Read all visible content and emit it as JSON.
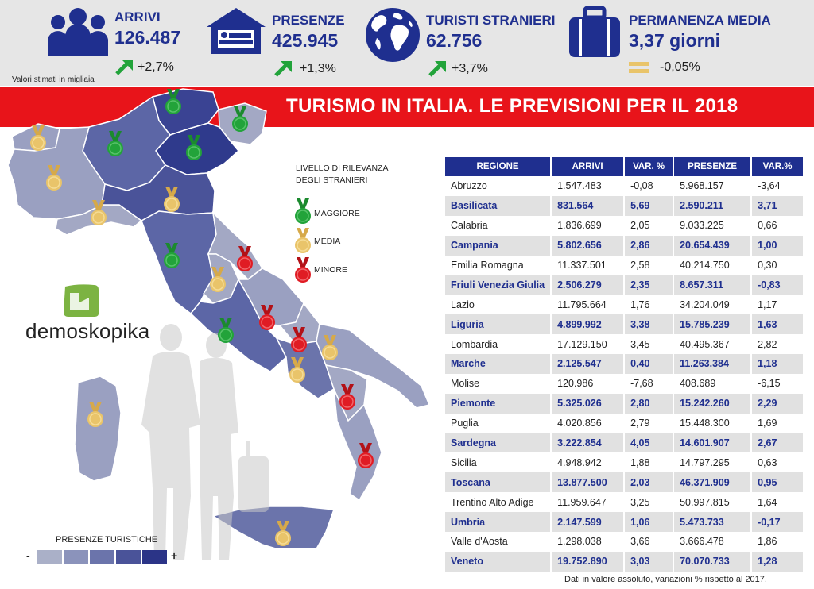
{
  "header": {
    "kpis": [
      {
        "label": "ARRIVI",
        "value": "126.487",
        "change": "+2,7%",
        "trend": "up",
        "icon": "people-icon"
      },
      {
        "label": "PRESENZE",
        "value": "425.945",
        "change": "+1,3%",
        "trend": "up",
        "icon": "hotel-bed-icon"
      },
      {
        "label": "TURISTI STRANIERI",
        "value": "62.756",
        "change": "+3,7%",
        "trend": "up",
        "icon": "globe-icon"
      },
      {
        "label": "PERMANENZA MEDIA",
        "value": "3,37 giorni",
        "change": "-0,05%",
        "trend": "flat",
        "icon": "suitcase-icon"
      }
    ],
    "note": "Valori stimati in migliaia"
  },
  "title": "TURISMO IN ITALIA. LE PREVISIONI PER IL 2018",
  "legend": {
    "title_line1": "LIVELLO DI RILEVANZA",
    "title_line2": "DEGLI STRANIERI",
    "items": [
      {
        "label": "MAGGIORE",
        "color": "#22a33a"
      },
      {
        "label": "MEDIA",
        "color": "#e9c46a"
      },
      {
        "label": "MINORE",
        "color": "#e01c24"
      }
    ]
  },
  "logo": {
    "text": "demoskopika"
  },
  "scale": {
    "title": "PRESENZE TURISTICHE",
    "minus": "-",
    "plus": "+",
    "colors": [
      "#aab0c8",
      "#8b93bb",
      "#6b74ab",
      "#4a5399",
      "#2b3487"
    ]
  },
  "chart_data": {
    "type": "table",
    "columns": [
      "REGIONE",
      "ARRIVI",
      "VAR. %",
      "PRESENZE",
      "VAR.%"
    ],
    "rows": [
      [
        "Abruzzo",
        "1.547.483",
        "-0,08",
        "5.968.157",
        "-3,64"
      ],
      [
        "Basilicata",
        "831.564",
        "5,69",
        "2.590.211",
        "3,71"
      ],
      [
        "Calabria",
        "1.836.699",
        "2,05",
        "9.033.225",
        "0,66"
      ],
      [
        "Campania",
        "5.802.656",
        "2,86",
        "20.654.439",
        "1,00"
      ],
      [
        "Emilia Romagna",
        "11.337.501",
        "2,58",
        "40.214.750",
        "0,30"
      ],
      [
        "Friuli Venezia Giulia",
        "2.506.279",
        "2,35",
        "8.657.311",
        "-0,83"
      ],
      [
        "Lazio",
        "11.795.664",
        "1,76",
        "34.204.049",
        "1,17"
      ],
      [
        "Liguria",
        "4.899.992",
        "3,38",
        "15.785.239",
        "1,63"
      ],
      [
        "Lombardia",
        "17.129.150",
        "3,45",
        "40.495.367",
        "2,82"
      ],
      [
        "Marche",
        "2.125.547",
        "0,40",
        "11.263.384",
        "1,18"
      ],
      [
        "Molise",
        "120.986",
        "-7,68",
        "408.689",
        "-6,15"
      ],
      [
        "Piemonte",
        "5.325.026",
        "2,80",
        "15.242.260",
        "2,29"
      ],
      [
        "Puglia",
        "4.020.856",
        "2,79",
        "15.448.300",
        "1,69"
      ],
      [
        "Sardegna",
        "3.222.854",
        "4,05",
        "14.601.907",
        "2,67"
      ],
      [
        "Sicilia",
        "4.948.942",
        "1,88",
        "14.797.295",
        "0,63"
      ],
      [
        "Toscana",
        "13.877.500",
        "2,03",
        "46.371.909",
        "0,95"
      ],
      [
        "Trentino Alto Adige",
        "11.959.647",
        "3,25",
        "50.997.815",
        "1,64"
      ],
      [
        "Umbria",
        "2.147.599",
        "1,06",
        "5.473.733",
        "-0,17"
      ],
      [
        "Valle d'Aosta",
        "1.298.038",
        "3,66",
        "3.666.478",
        "1,86"
      ],
      [
        "Veneto",
        "19.752.890",
        "3,03",
        "70.070.733",
        "1,28"
      ]
    ],
    "map_medals": {
      "maggiore": [
        "Lombardia",
        "Trentino Alto Adige",
        "Veneto",
        "Toscana",
        "Lazio"
      ],
      "media": [
        "Valle d'Aosta",
        "Piemonte",
        "Liguria",
        "Emilia Romagna",
        "Friuli Venezia Giulia",
        "Umbria",
        "Campania",
        "Puglia",
        "Sardegna",
        "Sicilia"
      ],
      "minore": [
        "Marche",
        "Abruzzo",
        "Molise",
        "Basilicata",
        "Calabria"
      ]
    }
  },
  "footnote": "Dati in valore assoluto, variazioni % rispetto  al 2017."
}
